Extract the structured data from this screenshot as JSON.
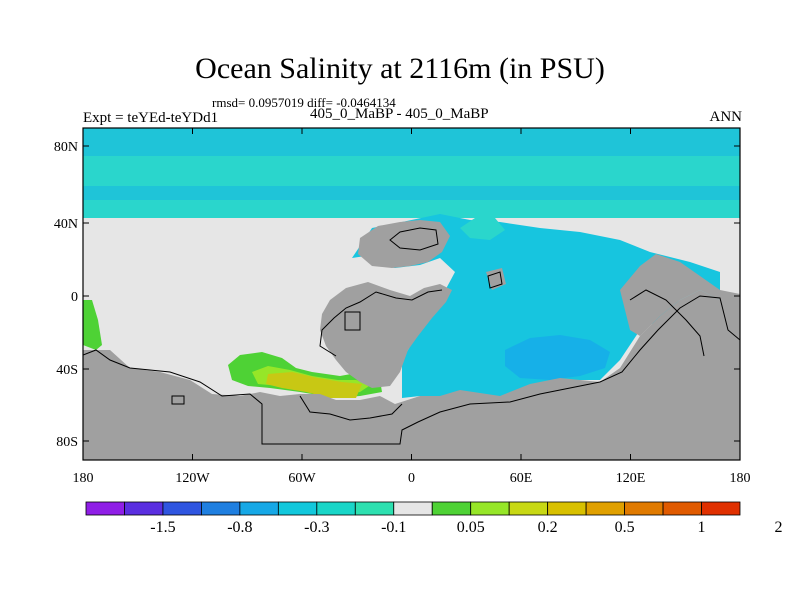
{
  "title": "Ocean Salinity at 2116m (in PSU)",
  "stats": "rmsd= 0.0957019 diff= -0.0464134",
  "experiment": "Expt = teYEd-teYDd1",
  "case": "405_0_MaBP - 405_0_MaBP",
  "season": "ANN",
  "axes": {
    "lat_ticks": [
      "80N",
      "40N",
      "0",
      "40S",
      "80S"
    ],
    "lon_ticks": [
      "180",
      "120W",
      "60W",
      "0",
      "60E",
      "120E",
      "180"
    ]
  },
  "colorbar": {
    "colors": [
      "#8f1ee6",
      "#5a2ee0",
      "#2f55e0",
      "#1f7fe0",
      "#16a8e6",
      "#12c8dc",
      "#19d6c8",
      "#2de0b0",
      "#e6e6e6",
      "#4ed235",
      "#96e628",
      "#c8d814",
      "#d8c000",
      "#e0a000",
      "#e07a00",
      "#e05a00",
      "#e03000"
    ],
    "labels": [
      "-1.5",
      "-0.8",
      "-0.3",
      "-0.1",
      "0.05",
      "0.2",
      "0.5",
      "1",
      "2"
    ]
  },
  "map_colors": {
    "land": "#a0a0a0",
    "near_zero": "#e6e6e6",
    "north_band_top": "#1fc4d8",
    "north_band": "#2ad6cc",
    "ocean_fresh": "#17c5df",
    "ocean_fresher": "#16b0e8",
    "south_plus": "#4ed235",
    "south_plus_strong": "#96e628",
    "south_max": "#c8c814"
  }
}
